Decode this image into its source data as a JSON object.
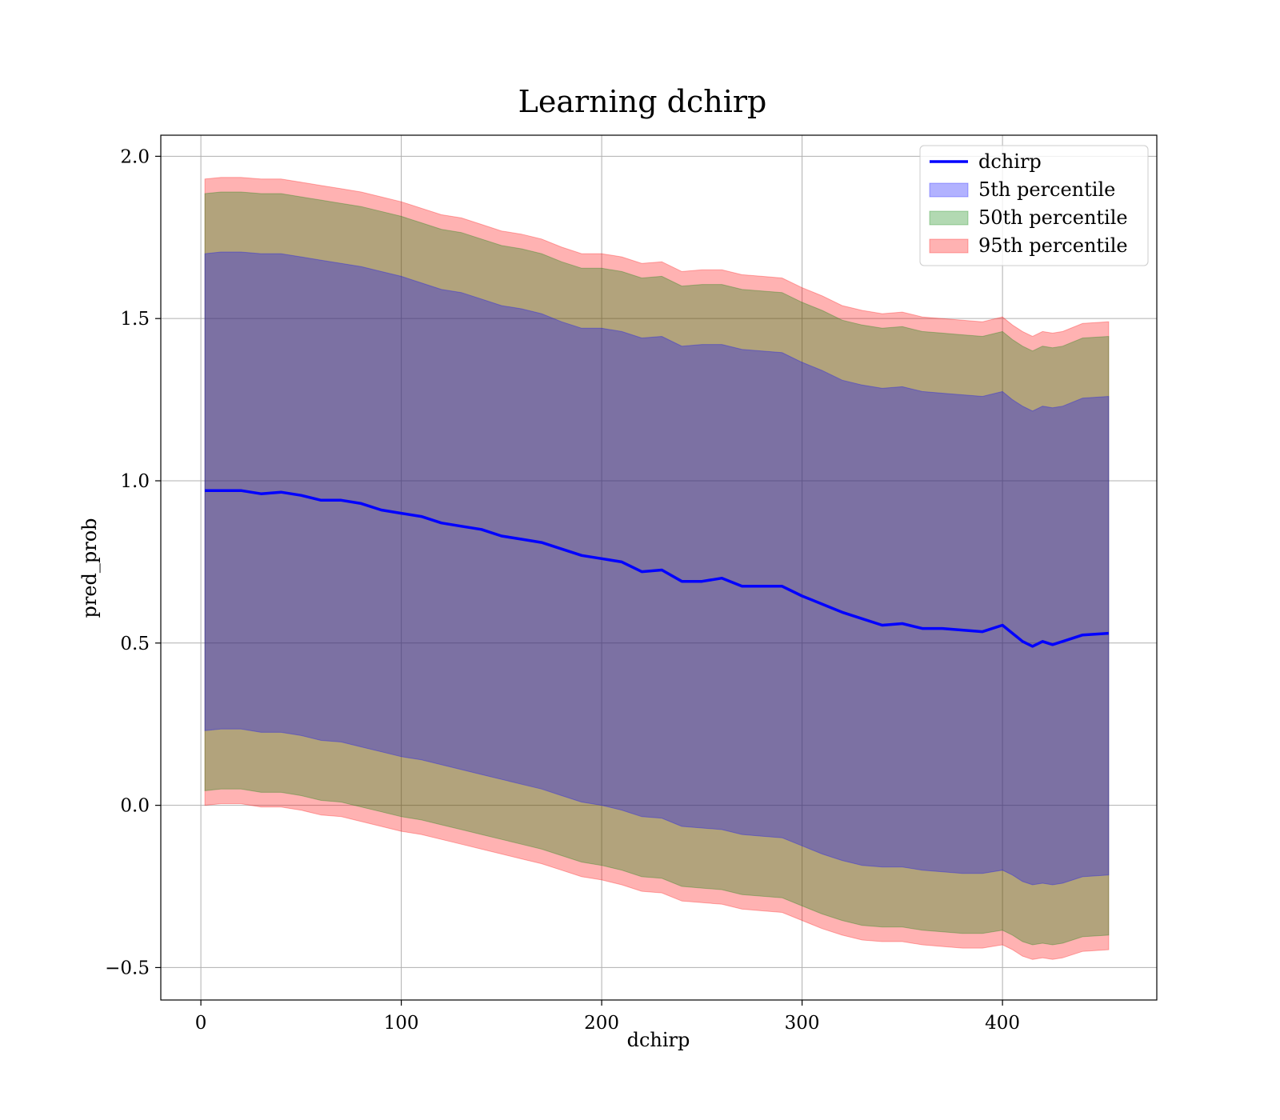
{
  "chart_data": {
    "type": "line",
    "title": "Learning dchirp",
    "xlabel": "dchirp",
    "ylabel": "pred_prob",
    "xlim": [
      -20,
      477
    ],
    "ylim": [
      -0.6,
      2.065
    ],
    "x_ticks": [
      0,
      100,
      200,
      300,
      400
    ],
    "x_tick_labels": [
      "0",
      "100",
      "200",
      "300",
      "400"
    ],
    "y_ticks": [
      -0.5,
      0.0,
      0.5,
      1.0,
      1.5,
      2.0
    ],
    "y_tick_labels": [
      "−0.5",
      "0.0",
      "0.5",
      "1.0",
      "1.5",
      "2.0"
    ],
    "grid": true,
    "legend_position": "top-right",
    "legend": [
      "dchirp",
      "5th percentile",
      "50th percentile",
      "95th percentile"
    ],
    "x": [
      2,
      10,
      20,
      30,
      40,
      50,
      60,
      70,
      80,
      90,
      100,
      110,
      120,
      130,
      140,
      150,
      160,
      170,
      180,
      190,
      200,
      210,
      220,
      230,
      240,
      250,
      260,
      270,
      280,
      290,
      300,
      310,
      320,
      330,
      340,
      350,
      360,
      370,
      380,
      390,
      400,
      405,
      410,
      415,
      420,
      425,
      430,
      440,
      453
    ],
    "series": [
      {
        "name": "dchirp",
        "kind": "line",
        "color": "#0000ff",
        "values": [
          0.97,
          0.97,
          0.97,
          0.96,
          0.965,
          0.955,
          0.94,
          0.94,
          0.93,
          0.91,
          0.9,
          0.89,
          0.87,
          0.86,
          0.85,
          0.83,
          0.82,
          0.81,
          0.79,
          0.77,
          0.76,
          0.75,
          0.72,
          0.725,
          0.69,
          0.69,
          0.7,
          0.675,
          0.675,
          0.675,
          0.645,
          0.62,
          0.595,
          0.575,
          0.555,
          0.56,
          0.545,
          0.545,
          0.54,
          0.535,
          0.555,
          0.53,
          0.505,
          0.49,
          0.505,
          0.495,
          0.505,
          0.525,
          0.53
        ]
      },
      {
        "name": "5th percentile",
        "kind": "band",
        "color": "#0000ff",
        "upper": [
          1.7,
          1.705,
          1.705,
          1.7,
          1.7,
          1.69,
          1.68,
          1.67,
          1.66,
          1.645,
          1.63,
          1.61,
          1.59,
          1.58,
          1.56,
          1.54,
          1.53,
          1.515,
          1.49,
          1.47,
          1.47,
          1.46,
          1.44,
          1.445,
          1.415,
          1.42,
          1.42,
          1.405,
          1.4,
          1.395,
          1.365,
          1.34,
          1.31,
          1.295,
          1.285,
          1.29,
          1.275,
          1.27,
          1.265,
          1.26,
          1.275,
          1.25,
          1.23,
          1.215,
          1.23,
          1.225,
          1.23,
          1.255,
          1.26
        ],
        "lower": [
          0.23,
          0.235,
          0.235,
          0.225,
          0.225,
          0.215,
          0.2,
          0.195,
          0.18,
          0.165,
          0.15,
          0.14,
          0.125,
          0.11,
          0.095,
          0.08,
          0.065,
          0.05,
          0.03,
          0.01,
          0.0,
          -0.015,
          -0.035,
          -0.04,
          -0.065,
          -0.07,
          -0.075,
          -0.09,
          -0.095,
          -0.1,
          -0.125,
          -0.15,
          -0.17,
          -0.185,
          -0.19,
          -0.19,
          -0.2,
          -0.205,
          -0.21,
          -0.21,
          -0.2,
          -0.215,
          -0.235,
          -0.245,
          -0.24,
          -0.245,
          -0.24,
          -0.22,
          -0.215
        ]
      },
      {
        "name": "50th percentile",
        "kind": "band",
        "color": "#008000",
        "upper": [
          1.885,
          1.89,
          1.89,
          1.885,
          1.885,
          1.875,
          1.865,
          1.855,
          1.845,
          1.83,
          1.815,
          1.795,
          1.775,
          1.765,
          1.745,
          1.725,
          1.715,
          1.7,
          1.675,
          1.655,
          1.655,
          1.645,
          1.625,
          1.63,
          1.6,
          1.605,
          1.605,
          1.59,
          1.585,
          1.58,
          1.55,
          1.525,
          1.495,
          1.48,
          1.47,
          1.475,
          1.46,
          1.455,
          1.45,
          1.445,
          1.46,
          1.435,
          1.415,
          1.4,
          1.415,
          1.41,
          1.415,
          1.44,
          1.445
        ],
        "lower": [
          0.045,
          0.05,
          0.05,
          0.04,
          0.04,
          0.03,
          0.015,
          0.01,
          -0.005,
          -0.02,
          -0.035,
          -0.045,
          -0.06,
          -0.075,
          -0.09,
          -0.105,
          -0.12,
          -0.135,
          -0.155,
          -0.175,
          -0.185,
          -0.2,
          -0.22,
          -0.225,
          -0.25,
          -0.255,
          -0.26,
          -0.275,
          -0.28,
          -0.285,
          -0.31,
          -0.335,
          -0.355,
          -0.37,
          -0.375,
          -0.375,
          -0.385,
          -0.39,
          -0.395,
          -0.395,
          -0.385,
          -0.4,
          -0.42,
          -0.43,
          -0.425,
          -0.43,
          -0.425,
          -0.405,
          -0.4
        ]
      },
      {
        "name": "95th percentile",
        "kind": "band",
        "color": "#ff0000",
        "upper": [
          1.93,
          1.935,
          1.935,
          1.93,
          1.93,
          1.92,
          1.91,
          1.9,
          1.89,
          1.875,
          1.86,
          1.84,
          1.82,
          1.81,
          1.79,
          1.77,
          1.76,
          1.745,
          1.72,
          1.7,
          1.7,
          1.69,
          1.67,
          1.675,
          1.645,
          1.65,
          1.65,
          1.635,
          1.63,
          1.625,
          1.595,
          1.57,
          1.54,
          1.525,
          1.515,
          1.52,
          1.505,
          1.5,
          1.495,
          1.49,
          1.505,
          1.48,
          1.46,
          1.445,
          1.46,
          1.455,
          1.46,
          1.485,
          1.49
        ],
        "lower": [
          0.0,
          0.005,
          0.005,
          -0.005,
          -0.005,
          -0.015,
          -0.03,
          -0.035,
          -0.05,
          -0.065,
          -0.08,
          -0.09,
          -0.105,
          -0.12,
          -0.135,
          -0.15,
          -0.165,
          -0.18,
          -0.2,
          -0.22,
          -0.23,
          -0.245,
          -0.265,
          -0.27,
          -0.295,
          -0.3,
          -0.305,
          -0.32,
          -0.325,
          -0.33,
          -0.355,
          -0.38,
          -0.4,
          -0.415,
          -0.42,
          -0.42,
          -0.43,
          -0.435,
          -0.44,
          -0.44,
          -0.43,
          -0.445,
          -0.465,
          -0.475,
          -0.47,
          -0.475,
          -0.47,
          -0.45,
          -0.445
        ]
      }
    ]
  }
}
